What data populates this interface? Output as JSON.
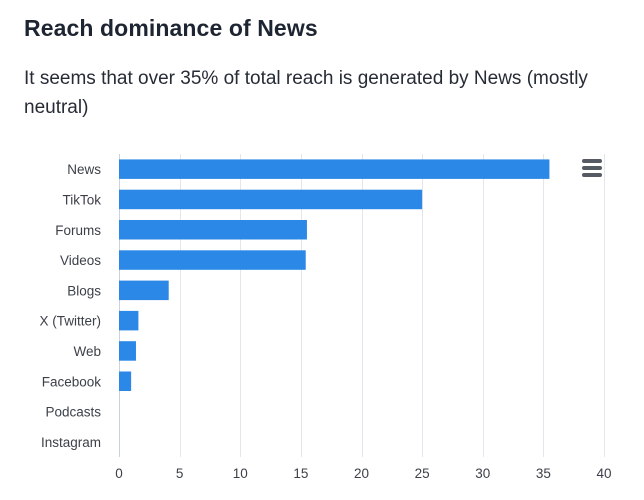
{
  "header": {
    "title": "Reach dominance of News",
    "subtitle": "It seems that over 35% of total reach is generated by News (mostly neutral)"
  },
  "menu": {
    "icon": "hamburger-menu-icon"
  },
  "colors": {
    "bar": "#2b88e6",
    "grid": "#e3e6ea",
    "axis": "#c9d3de"
  },
  "chart_data": {
    "type": "bar",
    "orientation": "horizontal",
    "title": "Reach dominance of News",
    "subtitle": "It seems that over 35% of total reach is generated by News (mostly neutral)",
    "categories": [
      "News",
      "TikTok",
      "Forums",
      "Videos",
      "Blogs",
      "X (Twitter)",
      "Web",
      "Facebook",
      "Podcasts",
      "Instagram"
    ],
    "values": [
      35.5,
      25.0,
      15.5,
      15.4,
      4.1,
      1.6,
      1.4,
      1.0,
      0,
      0
    ],
    "xlabel": "",
    "ylabel": "",
    "xlim": [
      0,
      40
    ],
    "xticks": [
      0,
      5,
      10,
      15,
      20,
      25,
      30,
      35,
      40
    ],
    "grid": true,
    "legend": "none"
  }
}
